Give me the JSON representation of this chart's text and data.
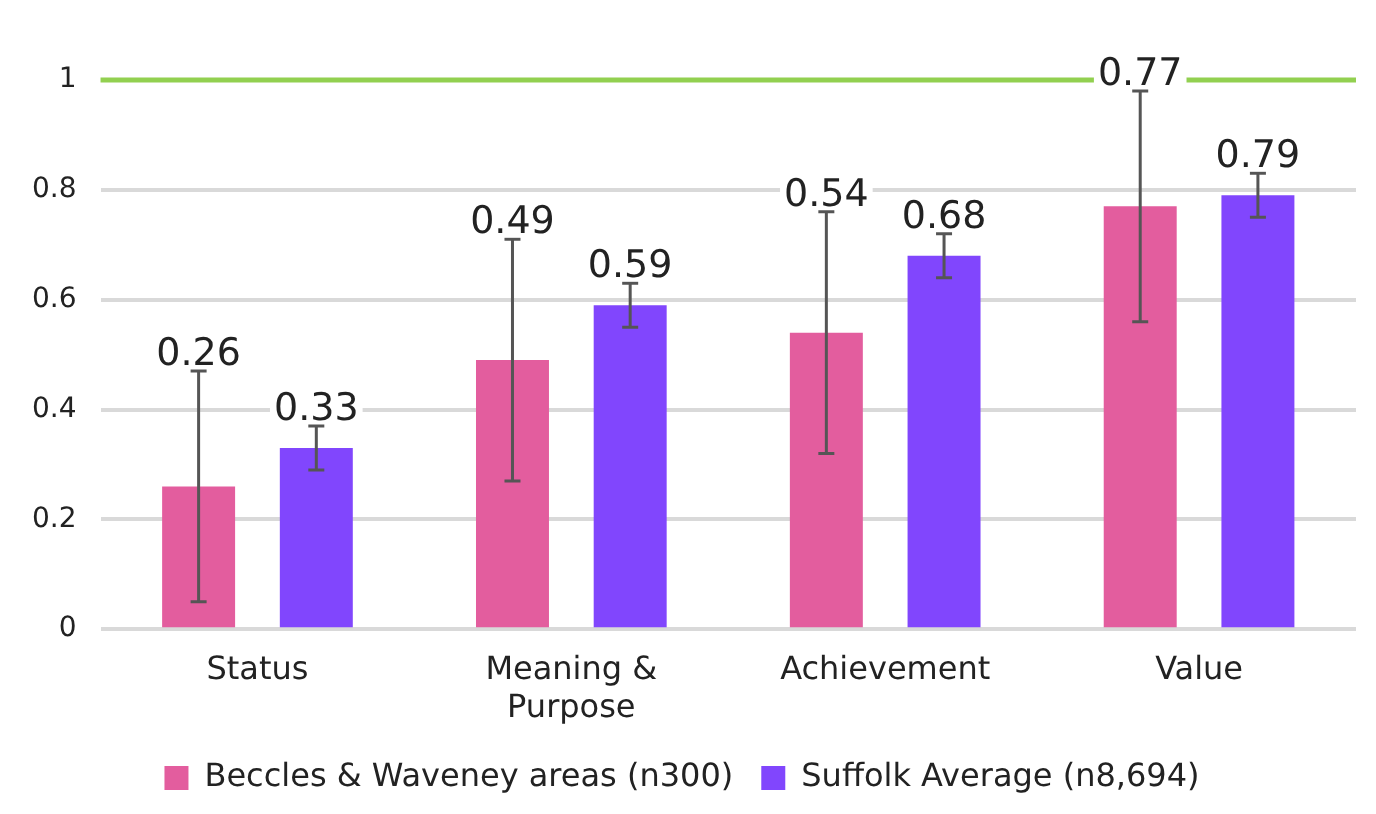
{
  "chart_data": {
    "type": "bar",
    "categories": [
      "Status",
      "Meaning & Purpose",
      "Achievement",
      "Value"
    ],
    "series": [
      {
        "name": "Beccles & Waveney areas (n300)",
        "color": "#e35d9e",
        "values": [
          0.26,
          0.49,
          0.54,
          0.77
        ],
        "errors": [
          0.21,
          0.22,
          0.22,
          0.21
        ]
      },
      {
        "name": "Suffolk Average (n8,694)",
        "color": "#8146fd",
        "values": [
          0.33,
          0.59,
          0.68,
          0.79
        ],
        "errors": [
          0.04,
          0.04,
          0.04,
          0.04
        ]
      }
    ],
    "ylim": [
      0,
      1
    ],
    "yticks": [
      0,
      0.2,
      0.4,
      0.6,
      0.8,
      1
    ],
    "ref_lines": [
      {
        "axis": "y",
        "value": 1,
        "color": "#92d050"
      }
    ],
    "grid": "y",
    "legend": "bottom",
    "data_labels": true
  }
}
